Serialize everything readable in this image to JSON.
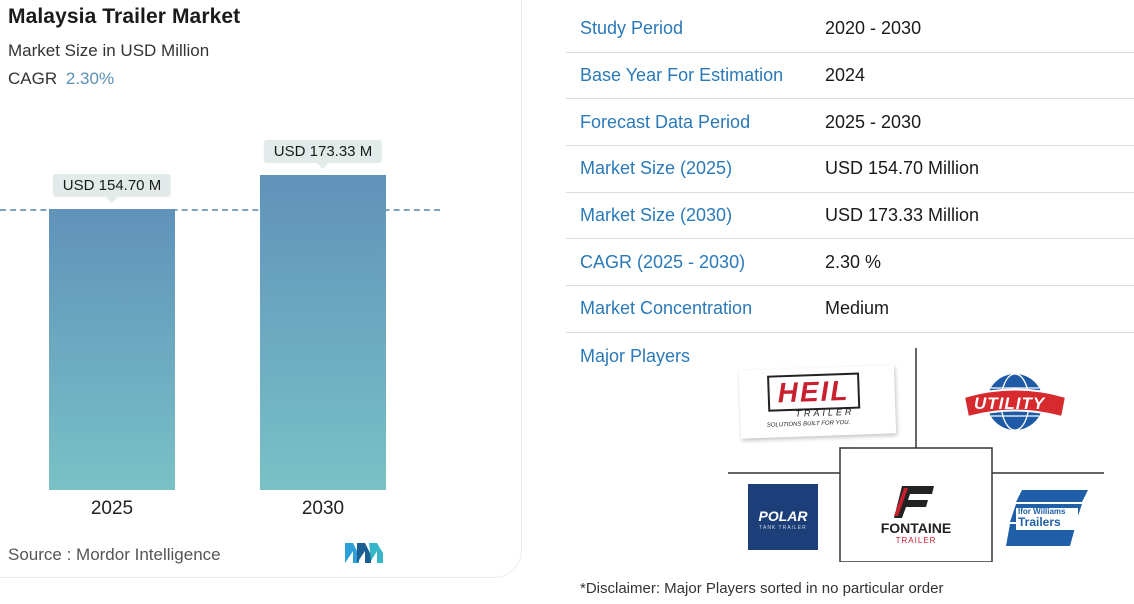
{
  "header": {
    "title": "Malaysia Trailer Market",
    "subtitle": "Market Size in USD Million",
    "cagr_label": "CAGR",
    "cagr_value": "2.30%"
  },
  "chart_data": {
    "type": "bar",
    "categories": [
      "2025",
      "2030"
    ],
    "values": [
      154.7,
      173.33
    ],
    "data_labels": [
      "USD 154.70 M",
      "USD 173.33 M"
    ],
    "title": "Malaysia Trailer Market",
    "subtitle": "Market Size in USD Million",
    "xlabel": "",
    "ylabel": "",
    "ylim": [
      0,
      173.33
    ],
    "grid": false,
    "reference_line": "dashed line at 2025 value",
    "colors": {
      "bar_top": "#6092ba",
      "bar_bottom": "#79c1c6",
      "ref_line": "#7fa3c2"
    }
  },
  "source": "Source :  Mordor Intelligence",
  "table": [
    {
      "key": "Study Period",
      "value": "2020 - 2030"
    },
    {
      "key": "Base Year For Estimation",
      "value": "2024"
    },
    {
      "key": "Forecast Data Period",
      "value": "2025 - 2030"
    },
    {
      "key": "Market Size (2025)",
      "value": "USD 154.70 Million"
    },
    {
      "key": "Market Size (2030)",
      "value": "USD 173.33 Million"
    },
    {
      "key": "CAGR (2025 - 2030)",
      "value": "2.30 %"
    },
    {
      "key": "Market Concentration",
      "value": "Medium"
    }
  ],
  "major_players_label": "Major Players",
  "players": {
    "heil": {
      "name": "HEIL",
      "sub": "TRAILER",
      "tagline": "SOLUTIONS BUILT FOR YOU."
    },
    "utility": {
      "name": "UTILITY"
    },
    "polar": {
      "name": "POLAR",
      "sub": "TANK TRAILER"
    },
    "fontaine": {
      "name": "FONTAINE",
      "sub": "TRAILER"
    },
    "ifor": {
      "name": "Ifor Williams",
      "sub": "Trailers"
    }
  },
  "disclaimer": "*Disclaimer: Major Players sorted in no particular order",
  "colors": {
    "key_text": "#2a79b8",
    "accent": "#5b8fb3"
  }
}
